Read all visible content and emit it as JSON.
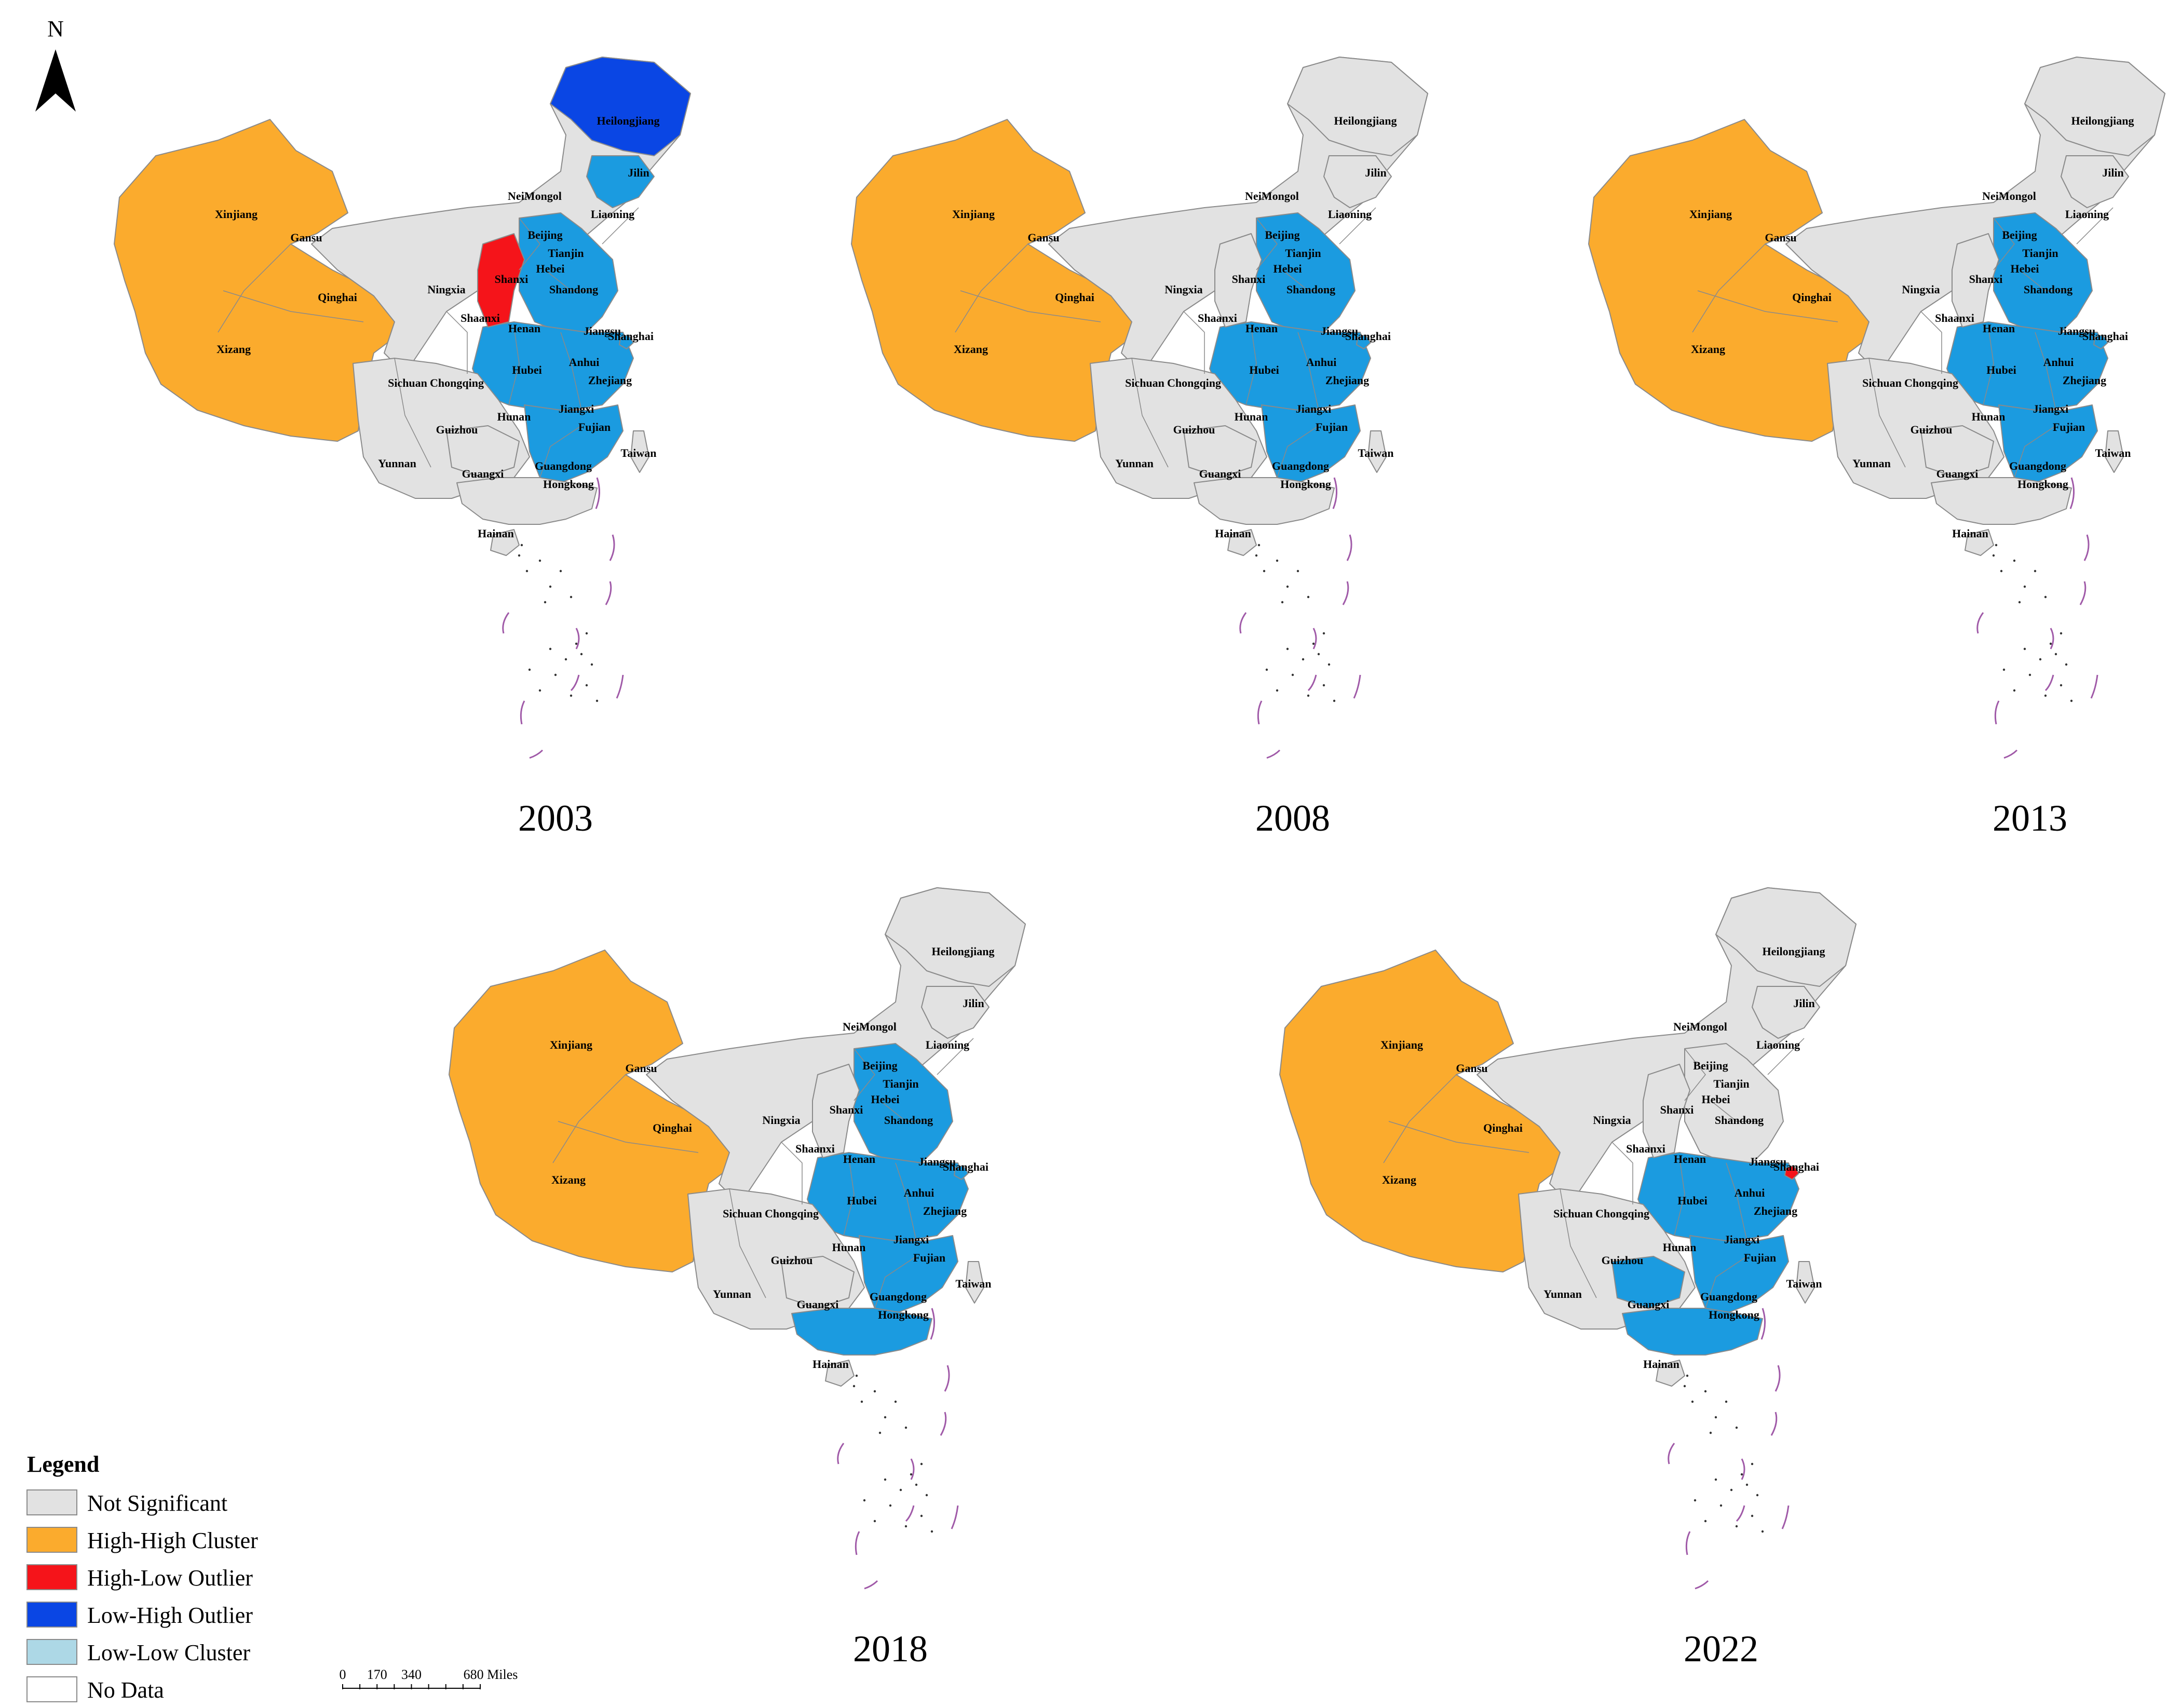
{
  "north_arrow": {
    "label": "N"
  },
  "legend": {
    "title": "Legend",
    "items": [
      {
        "key": "ns",
        "label": "Not Significant",
        "color": "#e2e2e2"
      },
      {
        "key": "hh",
        "label": "High-High Cluster",
        "color": "#fbab2d"
      },
      {
        "key": "hl",
        "label": "High-Low Outlier",
        "color": "#f5141a"
      },
      {
        "key": "lh",
        "label": "Low-High Outlier",
        "color": "#0a46e4"
      },
      {
        "key": "ll",
        "label": "Low-Low Cluster",
        "color": "#add8e6"
      },
      {
        "key": "nd",
        "label": "No Data",
        "color": "#ffffff"
      }
    ]
  },
  "colors": {
    "light_blue_fill": "#1b9be0",
    "border": "#8a8a8a",
    "dash_line": "#a05aa8"
  },
  "scale_bar": {
    "ticks": [
      "0",
      "170",
      "340",
      "680 Miles"
    ]
  },
  "maps": [
    {
      "year": "2003",
      "labels": [
        "Xinjiang",
        "Xizang",
        "Qinghai",
        "Gansu",
        "NeiMongol",
        "Heilongjiang",
        "Jilin",
        "Liaoning",
        "Beijing",
        "Tianjin",
        "Hebei",
        "Shanxi",
        "Shandong",
        "Ningxia",
        "Shaanxi",
        "Henan",
        "Jiangsu",
        "Shanghai",
        "Anhui",
        "Hubei",
        "Sichuan",
        "Chongqing",
        "Zhejiang",
        "Hunan",
        "Jiangxi",
        "Fujian",
        "Taiwan",
        "Yunnan",
        "Guizhou",
        "Guangxi",
        "Guangdong",
        "Hongkong",
        "Hainan"
      ],
      "regions": {
        "northwest": "hh",
        "north": "ns",
        "northeast": "lh",
        "jilin": "ll",
        "shanxi": "hl",
        "east": "ll",
        "center": "ll",
        "southcenter": "ll",
        "southwest": "ns",
        "south": "ns",
        "hainan": "ns",
        "taiwan": "ns",
        "shanghai": "ll"
      }
    },
    {
      "year": "2008",
      "labels": [
        "Xinjiang",
        "Xizang",
        "Qinghai",
        "Gansu",
        "NeiMongol",
        "Heilongjiang",
        "Jilin",
        "Liaoning",
        "Beijing",
        "Tianjin",
        "Hebei",
        "Shanxi",
        "Shandong",
        "Ningxia",
        "Shaanxi",
        "Henan",
        "Jiangsu",
        "Shanghai",
        "Anhui",
        "Hubei",
        "Sichuan",
        "Chongqing",
        "Zhejiang",
        "Hunan",
        "Jiangxi",
        "Fujian",
        "Taiwan",
        "Yunnan",
        "Guizhou",
        "Guangxi",
        "Guangdong",
        "Hongkong",
        "Hainan"
      ],
      "regions": {
        "northwest": "hh",
        "north": "ns",
        "northeast": "ns",
        "jilin": "ns",
        "shanxi": "ns",
        "east": "ll",
        "center": "ll",
        "southcenter": "ll",
        "southwest": "ns",
        "south": "ns",
        "hainan": "ns",
        "taiwan": "ns",
        "shanghai": "ll"
      }
    },
    {
      "year": "2013",
      "labels": [
        "Xinjiang",
        "Xizang",
        "Qinghai",
        "Gansu",
        "NeiMongol",
        "Heilongjiang",
        "Jilin",
        "Liaoning",
        "Beijing",
        "Tianjin",
        "Hebei",
        "Shanxi",
        "Shandong",
        "Ningxia",
        "Shaanxi",
        "Henan",
        "Jiangsu",
        "Shanghai",
        "Anhui",
        "Hubei",
        "Sichuan",
        "Chongqing",
        "Zhejiang",
        "Hunan",
        "Jiangxi",
        "Fujian",
        "Taiwan",
        "Yunnan",
        "Guizhou",
        "Guangxi",
        "Guangdong",
        "Hongkong",
        "Hainan"
      ],
      "regions": {
        "northwest": "hh",
        "north": "ns",
        "northeast": "ns",
        "jilin": "ns",
        "shanxi": "ns",
        "east": "ll",
        "center": "ll",
        "southcenter": "ll",
        "southwest": "ns",
        "south": "ns",
        "hainan": "ns",
        "taiwan": "ns",
        "shanghai": "ll"
      }
    },
    {
      "year": "2018",
      "labels": [
        "Xinjiang",
        "Xizang",
        "Qinghai",
        "Gansu",
        "NeiMongol",
        "Heilongjiang",
        "Jilin",
        "Liaoning",
        "Beijing",
        "Tianjin",
        "Hebei",
        "Shanxi",
        "Shandong",
        "Ningxia",
        "Shaanxi",
        "Henan",
        "Jiangsu",
        "Shanghai",
        "Anhui",
        "Hubei",
        "Sichuan",
        "Chongqing",
        "Zhejiang",
        "Hunan",
        "Jiangxi",
        "Fujian",
        "Taiwan",
        "Yunnan",
        "Guizhou",
        "Guangxi",
        "Guangdong",
        "Hongkong",
        "Hainan"
      ],
      "regions": {
        "northwest": "hh",
        "north": "ns",
        "northeast": "ns",
        "jilin": "ns",
        "shanxi": "ns",
        "east": "ll",
        "center": "ll",
        "southcenter": "ll",
        "southwest": "ns",
        "south": "ll",
        "hainan": "ns",
        "taiwan": "ns",
        "shanghai": "ll"
      }
    },
    {
      "year": "2022",
      "labels": [
        "Xinjiang",
        "Xizang",
        "Qinghai",
        "Gansu",
        "NeiMongol",
        "Heilongjiang",
        "Jilin",
        "Liaoning",
        "Beijing",
        "Tianjin",
        "Hebei",
        "Shanxi",
        "Shandong",
        "Ningxia",
        "Shaanxi",
        "Henan",
        "Jiangsu",
        "Shanghai",
        "Anhui",
        "Hubei",
        "Sichuan",
        "Chongqing",
        "Zhejiang",
        "Hunan",
        "Jiangxi",
        "Fujian",
        "Taiwan",
        "Yunnan",
        "Guizhou",
        "Guangxi",
        "Guangdong",
        "Hongkong",
        "Hainan"
      ],
      "regions": {
        "northwest": "hh",
        "north": "ns",
        "northeast": "ns",
        "jilin": "ns",
        "shanxi": "ns",
        "east": "ns",
        "center": "ll",
        "southcenter": "ll",
        "southwest": "ns",
        "south": "ll",
        "hainan": "ns",
        "taiwan": "ns",
        "shanghai": "hl",
        "guizhou": "ll"
      }
    }
  ]
}
